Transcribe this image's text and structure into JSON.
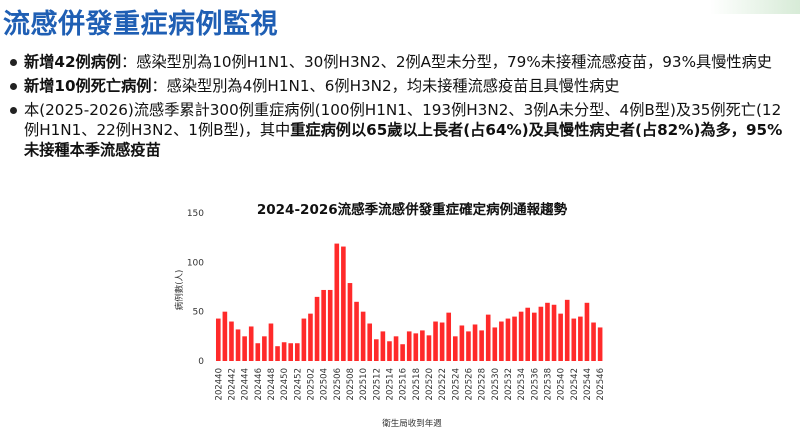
{
  "header": {
    "title_part1": "流感併發重症",
    "title_part2": "病例監視"
  },
  "bullets": [
    {
      "bold": "新增42例病例",
      "text": "：感染型別為10例H1N1、30例H3N2、2例A型未分型，79%未接種流感疫苗，93%具慢性病史"
    },
    {
      "bold": "新增10例死亡病例",
      "text": "：感染型別為4例H1N1、6例H3N2，均未接種流感疫苗且具慢性病史"
    },
    {
      "text1": "本(2025-2026)流感季累計300例重症病例(100例H1N1、193例H3N2、3例A未分型、4例B型)及35例死亡(12例H1N1、22例H3N2、1例B型)，其中",
      "bold1": "重症病例以65歲以上長者(占64%)及具慢性病史者(占82%)為多，95%未接種本季流感疫苗"
    }
  ],
  "chart_data": {
    "type": "bar",
    "title": "2024-2026流感季流感併發重症確定病例通報趨勢",
    "xlabel": "衛生局收到年週",
    "ylabel": "病例數(人)",
    "ylim": [
      0,
      150
    ],
    "yticks": [
      0,
      50,
      100,
      150
    ],
    "grid": false,
    "bar_color": "#ff2a2a",
    "x_tick_labels": [
      "202440",
      "202442",
      "202444",
      "202446",
      "202448",
      "202450",
      "202452",
      "202502",
      "202504",
      "202506",
      "202508",
      "202510",
      "202512",
      "202514",
      "202516",
      "202518",
      "202520",
      "202522",
      "202524",
      "202526",
      "202528",
      "202530",
      "202532",
      "202534",
      "202536",
      "202538",
      "202540",
      "202542",
      "202544",
      "202546"
    ],
    "categories": [
      "202440",
      "202441",
      "202442",
      "202443",
      "202444",
      "202445",
      "202446",
      "202447",
      "202448",
      "202449",
      "202450",
      "202451",
      "202452",
      "202501",
      "202502",
      "202503",
      "202504",
      "202505",
      "202506",
      "202507",
      "202508",
      "202509",
      "202510",
      "202511",
      "202512",
      "202513",
      "202514",
      "202515",
      "202516",
      "202517",
      "202518",
      "202519",
      "202520",
      "202521",
      "202522",
      "202523",
      "202524",
      "202525",
      "202526",
      "202527",
      "202528",
      "202529",
      "202530",
      "202531",
      "202532",
      "202533",
      "202534",
      "202535",
      "202536",
      "202537",
      "202538",
      "202539",
      "202540",
      "202541",
      "202542",
      "202543",
      "202544",
      "202545",
      "202546",
      "202547"
    ],
    "values": [
      43,
      50,
      40,
      32,
      25,
      35,
      18,
      25,
      38,
      15,
      19,
      18,
      18,
      43,
      48,
      65,
      72,
      72,
      119,
      116,
      79,
      60,
      50,
      38,
      22,
      30,
      20,
      25,
      17,
      30,
      28,
      31,
      26,
      40,
      39,
      49,
      25,
      36,
      30,
      37,
      31,
      47,
      34,
      40,
      43,
      45,
      50,
      54,
      49,
      55,
      59,
      57,
      48,
      62,
      43,
      45,
      59,
      39,
      34,
      0
    ]
  }
}
